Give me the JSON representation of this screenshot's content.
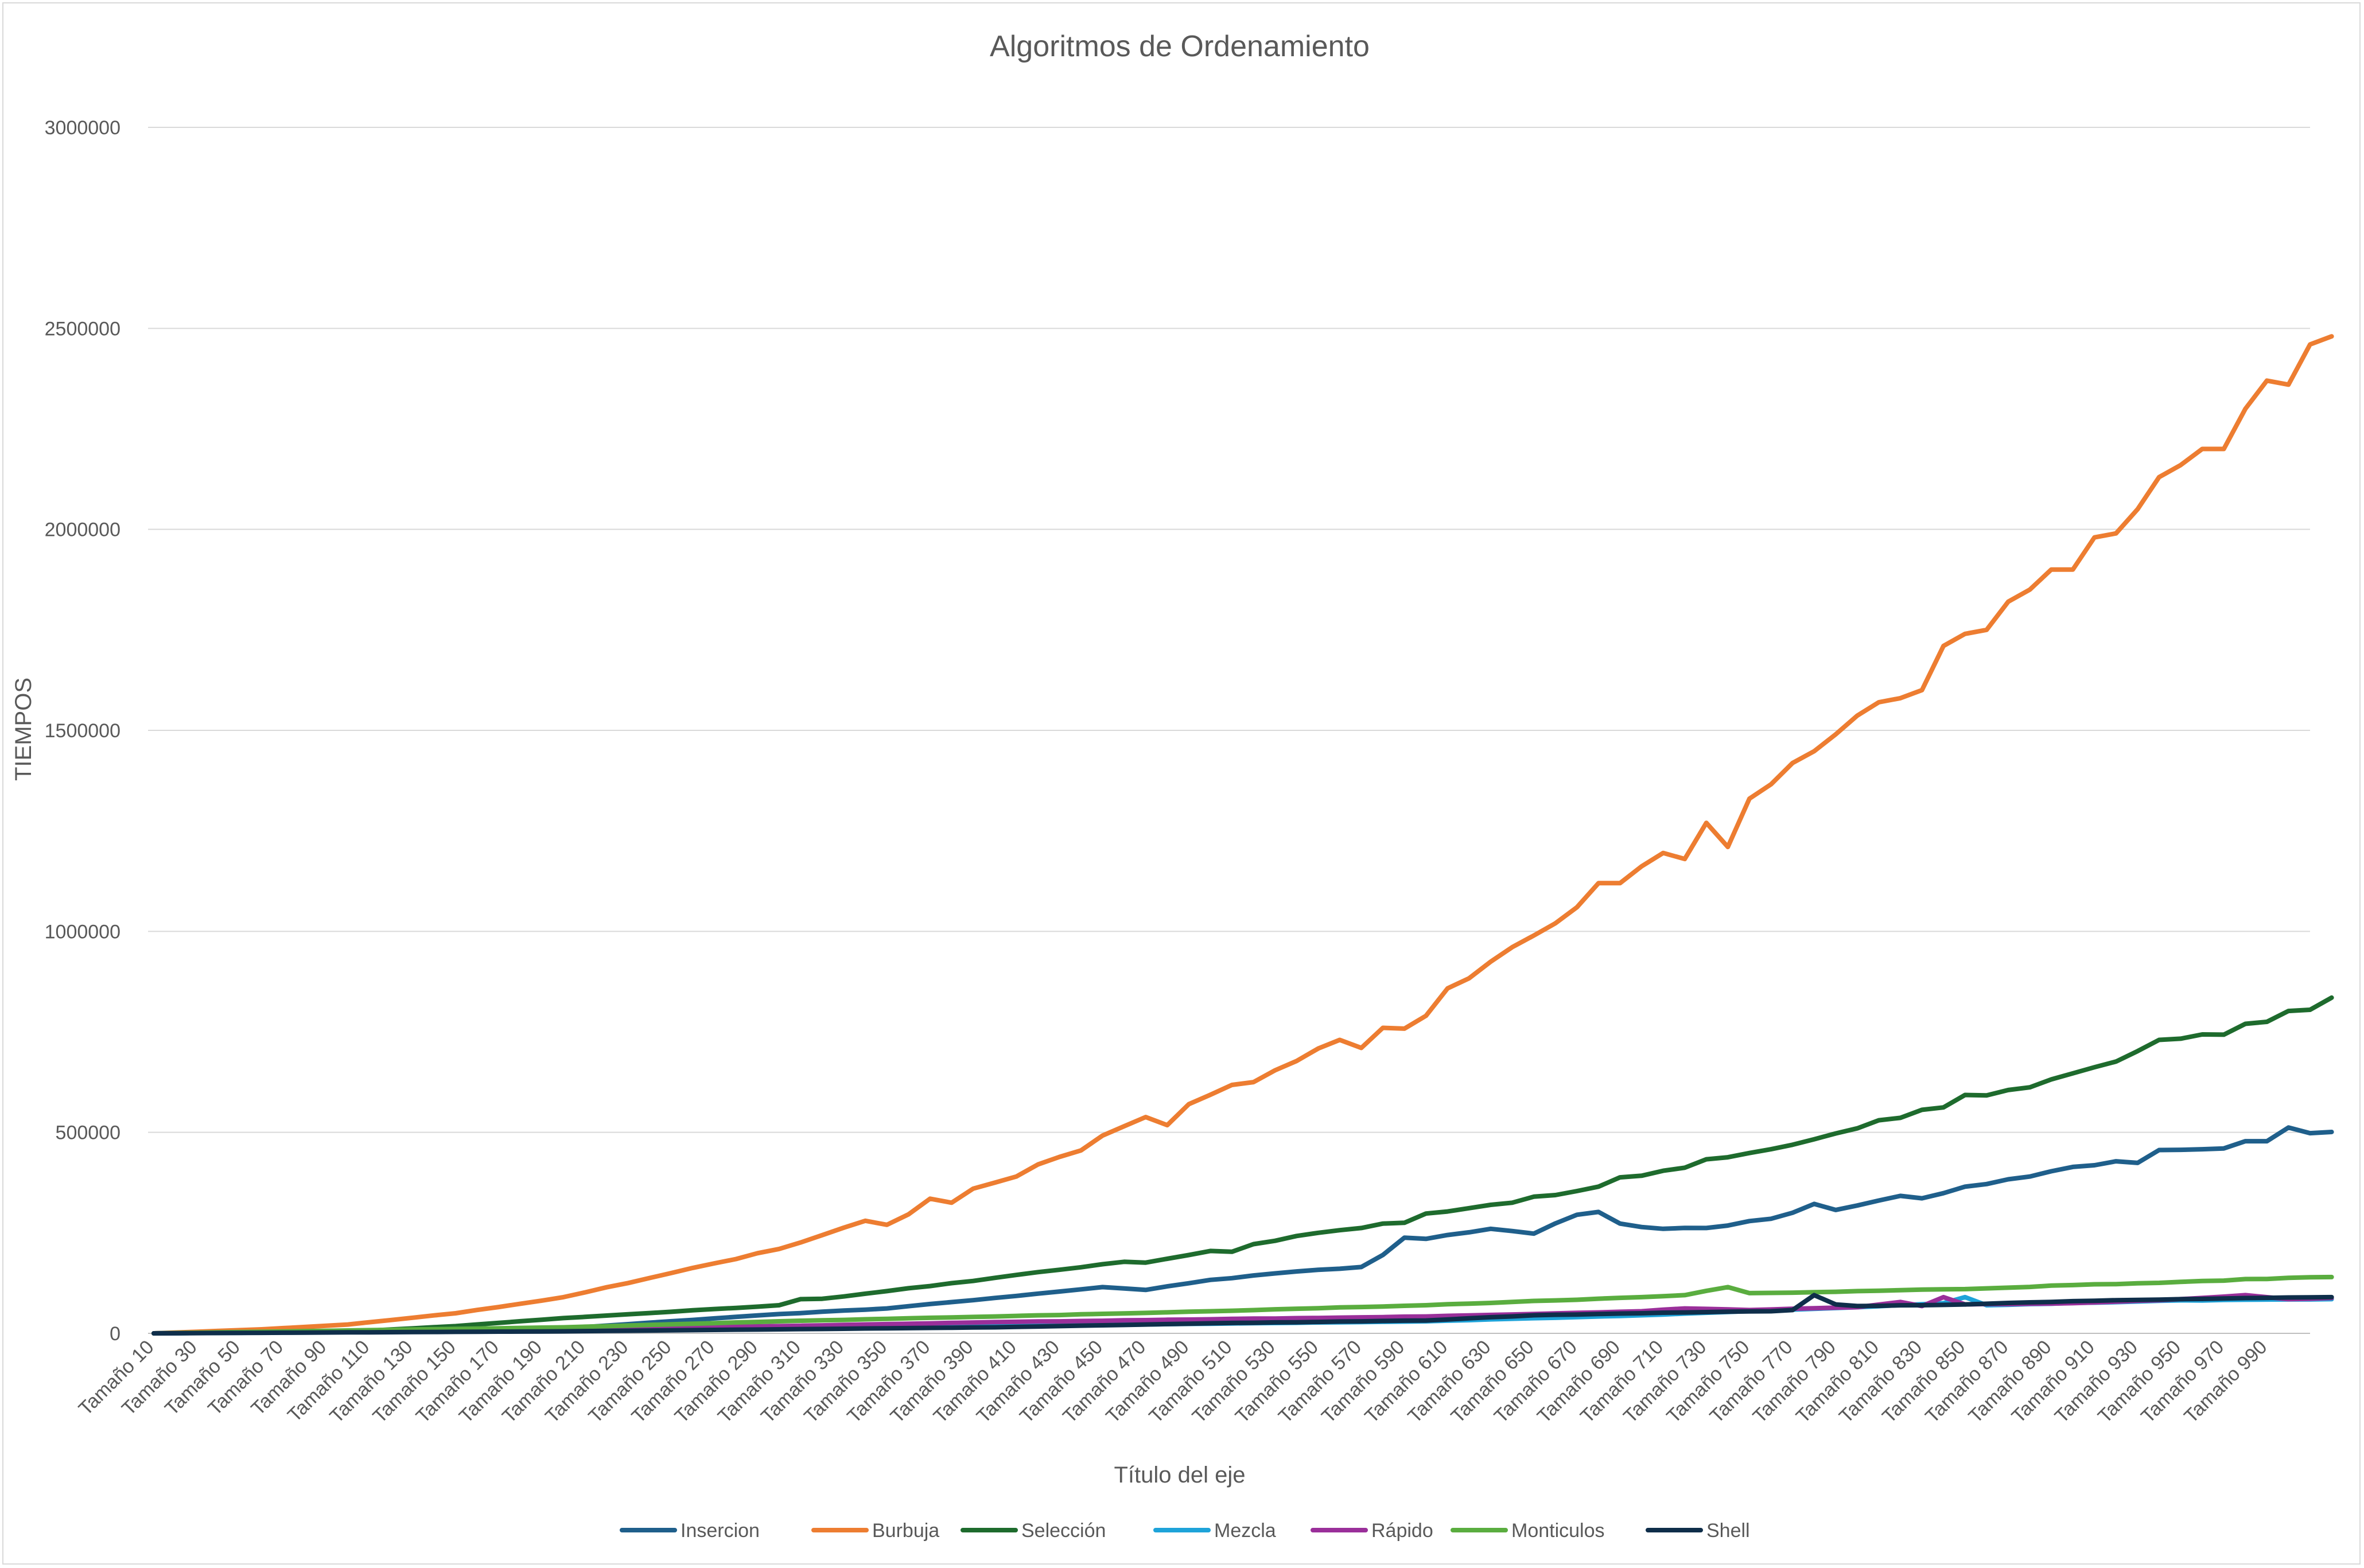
{
  "chart_data": {
    "type": "line",
    "title": "Algoritmos de Ordenamiento",
    "xlabel": "Título del eje",
    "ylabel": "TIEMPOS",
    "ylim": [
      0,
      3000000
    ],
    "yticks": [
      0,
      500000,
      1000000,
      1500000,
      2000000,
      2500000,
      3000000
    ],
    "grid": true,
    "legend_position": "bottom",
    "x_prefix": "Tamaño",
    "x_start": 10,
    "x_step": 10,
    "x_tick_labels": [
      "Tamaño 10",
      "Tamaño 30",
      "Tamaño 50",
      "Tamaño 70",
      "Tamaño 90",
      "Tamaño 110",
      "Tamaño 130",
      "Tamaño 150",
      "Tamaño 170",
      "Tamaño 190",
      "Tamaño 210",
      "Tamaño 230",
      "Tamaño 250",
      "Tamaño 270",
      "Tamaño 290",
      "Tamaño 310",
      "Tamaño 330",
      "Tamaño 350",
      "Tamaño 370",
      "Tamaño 390",
      "Tamaño 410",
      "Tamaño 430",
      "Tamaño 450",
      "Tamaño 470",
      "Tamaño 490",
      "Tamaño 510",
      "Tamaño 530",
      "Tamaño 550",
      "Tamaño 570",
      "Tamaño 590",
      "Tamaño 610",
      "Tamaño 630",
      "Tamaño 650",
      "Tamaño 670",
      "Tamaño 690",
      "Tamaño 710",
      "Tamaño 730",
      "Tamaño 750",
      "Tamaño 770",
      "Tamaño 790",
      "Tamaño 810",
      "Tamaño 830",
      "Tamaño 850",
      "Tamaño 870",
      "Tamaño 890",
      "Tamaño 910",
      "Tamaño 930",
      "Tamaño 950",
      "Tamaño 970",
      "Tamaño 990"
    ],
    "series": [
      {
        "name": "Insercion",
        "color": "#1f5f8b",
        "anchors": [
          [
            10,
            0
          ],
          [
            100,
            3000
          ],
          [
            200,
            12000
          ],
          [
            300,
            48000
          ],
          [
            350,
            62000
          ],
          [
            400,
            88000
          ],
          [
            450,
            115000
          ],
          [
            470,
            108000
          ],
          [
            500,
            133000
          ],
          [
            550,
            158000
          ],
          [
            570,
            165000
          ],
          [
            580,
            195000
          ],
          [
            590,
            238000
          ],
          [
            600,
            235000
          ],
          [
            630,
            260000
          ],
          [
            650,
            248000
          ],
          [
            670,
            295000
          ],
          [
            680,
            302000
          ],
          [
            690,
            273000
          ],
          [
            710,
            260000
          ],
          [
            730,
            262000
          ],
          [
            760,
            285000
          ],
          [
            770,
            300000
          ],
          [
            780,
            322000
          ],
          [
            790,
            307000
          ],
          [
            800,
            318000
          ],
          [
            820,
            342000
          ],
          [
            830,
            336000
          ],
          [
            850,
            365000
          ],
          [
            880,
            390000
          ],
          [
            900,
            414000
          ],
          [
            920,
            428000
          ],
          [
            930,
            424000
          ],
          [
            940,
            456000
          ],
          [
            960,
            458000
          ],
          [
            970,
            460000
          ],
          [
            980,
            478000
          ],
          [
            990,
            478000
          ],
          [
            1000,
            512000
          ],
          [
            1010,
            498000
          ]
        ]
      },
      {
        "name": "Burbuja",
        "color": "#ed7d31",
        "anchors": [
          [
            10,
            0
          ],
          [
            60,
            10000
          ],
          [
            100,
            22000
          ],
          [
            150,
            50000
          ],
          [
            200,
            90000
          ],
          [
            250,
            150000
          ],
          [
            300,
            210000
          ],
          [
            340,
            280000
          ],
          [
            350,
            270000
          ],
          [
            360,
            296000
          ],
          [
            370,
            335000
          ],
          [
            380,
            325000
          ],
          [
            390,
            360000
          ],
          [
            410,
            390000
          ],
          [
            420,
            420000
          ],
          [
            440,
            455000
          ],
          [
            450,
            492000
          ],
          [
            470,
            538000
          ],
          [
            480,
            518000
          ],
          [
            490,
            570000
          ],
          [
            510,
            618000
          ],
          [
            520,
            625000
          ],
          [
            560,
            730000
          ],
          [
            570,
            710000
          ],
          [
            580,
            760000
          ],
          [
            590,
            758000
          ],
          [
            600,
            790000
          ],
          [
            610,
            858000
          ],
          [
            660,
            1020000
          ],
          [
            670,
            1060000
          ],
          [
            680,
            1120000
          ],
          [
            690,
            1120000
          ],
          [
            710,
            1195000
          ],
          [
            720,
            1180000
          ],
          [
            730,
            1270000
          ],
          [
            740,
            1210000
          ],
          [
            750,
            1330000
          ],
          [
            790,
            1490000
          ],
          [
            810,
            1570000
          ],
          [
            820,
            1580000
          ],
          [
            830,
            1600000
          ],
          [
            840,
            1710000
          ],
          [
            850,
            1740000
          ],
          [
            860,
            1750000
          ],
          [
            870,
            1820000
          ],
          [
            880,
            1850000
          ],
          [
            890,
            1900000
          ],
          [
            900,
            1900000
          ],
          [
            910,
            1980000
          ],
          [
            920,
            1990000
          ],
          [
            930,
            2050000
          ],
          [
            940,
            2130000
          ],
          [
            950,
            2160000
          ],
          [
            960,
            2200000
          ],
          [
            970,
            2200000
          ],
          [
            980,
            2300000
          ],
          [
            990,
            2370000
          ],
          [
            1000,
            2360000
          ],
          [
            1010,
            2460000
          ],
          [
            1020,
            2480000
          ]
        ]
      },
      {
        "name": "Selección",
        "color": "#1e6b2d",
        "anchors": [
          [
            10,
            0
          ],
          [
            100,
            4000
          ],
          [
            150,
            18000
          ],
          [
            200,
            38000
          ],
          [
            300,
            70000
          ],
          [
            310,
            85000
          ],
          [
            320,
            86000
          ],
          [
            350,
            105000
          ],
          [
            400,
            138000
          ],
          [
            450,
            172000
          ],
          [
            460,
            178000
          ],
          [
            470,
            176000
          ],
          [
            500,
            205000
          ],
          [
            510,
            203000
          ],
          [
            520,
            222000
          ],
          [
            550,
            250000
          ],
          [
            570,
            262000
          ],
          [
            580,
            273000
          ],
          [
            590,
            275000
          ],
          [
            600,
            298000
          ],
          [
            640,
            325000
          ],
          [
            650,
            340000
          ],
          [
            660,
            344000
          ],
          [
            680,
            365000
          ],
          [
            690,
            388000
          ],
          [
            700,
            392000
          ],
          [
            720,
            412000
          ],
          [
            730,
            433000
          ],
          [
            740,
            438000
          ],
          [
            760,
            458000
          ],
          [
            800,
            510000
          ],
          [
            810,
            530000
          ],
          [
            820,
            536000
          ],
          [
            830,
            556000
          ],
          [
            840,
            562000
          ],
          [
            850,
            593000
          ],
          [
            860,
            592000
          ],
          [
            880,
            612000
          ],
          [
            920,
            676000
          ],
          [
            930,
            702000
          ],
          [
            940,
            730000
          ],
          [
            950,
            733000
          ],
          [
            970,
            743000
          ],
          [
            980,
            770000
          ],
          [
            990,
            775000
          ],
          [
            1000,
            802000
          ],
          [
            1010,
            805000
          ],
          [
            1020,
            835000
          ]
        ]
      },
      {
        "name": "Mezcla",
        "color": "#1ea3d9",
        "anchors": [
          [
            10,
            0
          ],
          [
            200,
            8000
          ],
          [
            400,
            18000
          ],
          [
            600,
            30000
          ],
          [
            700,
            45000
          ],
          [
            800,
            65000
          ],
          [
            840,
            75000
          ],
          [
            850,
            90000
          ],
          [
            860,
            70000
          ],
          [
            950,
            82000
          ],
          [
            1020,
            85000
          ]
        ]
      },
      {
        "name": "Rápido",
        "color": "#9a2f9a",
        "anchors": [
          [
            10,
            0
          ],
          [
            200,
            10000
          ],
          [
            300,
            18000
          ],
          [
            400,
            28000
          ],
          [
            500,
            35000
          ],
          [
            600,
            42000
          ],
          [
            700,
            55000
          ],
          [
            720,
            62000
          ],
          [
            750,
            58000
          ],
          [
            800,
            65000
          ],
          [
            820,
            78000
          ],
          [
            830,
            68000
          ],
          [
            840,
            90000
          ],
          [
            850,
            72000
          ],
          [
            900,
            75000
          ],
          [
            950,
            85000
          ],
          [
            980,
            95000
          ],
          [
            1000,
            85000
          ],
          [
            1020,
            88000
          ]
        ]
      },
      {
        "name": "Monticulos",
        "color": "#5aad3f",
        "anchors": [
          [
            10,
            0
          ],
          [
            200,
            15000
          ],
          [
            300,
            30000
          ],
          [
            400,
            42000
          ],
          [
            500,
            55000
          ],
          [
            600,
            70000
          ],
          [
            700,
            90000
          ],
          [
            720,
            95000
          ],
          [
            740,
            115000
          ],
          [
            750,
            100000
          ],
          [
            800,
            105000
          ],
          [
            850,
            110000
          ],
          [
            900,
            120000
          ],
          [
            950,
            128000
          ],
          [
            1000,
            138000
          ],
          [
            1020,
            140000
          ]
        ]
      },
      {
        "name": "Shell",
        "color": "#0f2e4a",
        "anchors": [
          [
            10,
            0
          ],
          [
            200,
            5000
          ],
          [
            400,
            15000
          ],
          [
            500,
            25000
          ],
          [
            600,
            32000
          ],
          [
            650,
            45000
          ],
          [
            700,
            50000
          ],
          [
            720,
            52000
          ],
          [
            760,
            55000
          ],
          [
            770,
            58000
          ],
          [
            780,
            95000
          ],
          [
            790,
            72000
          ],
          [
            800,
            68000
          ],
          [
            850,
            72000
          ],
          [
            900,
            80000
          ],
          [
            950,
            85000
          ],
          [
            1020,
            90000
          ]
        ]
      }
    ]
  }
}
